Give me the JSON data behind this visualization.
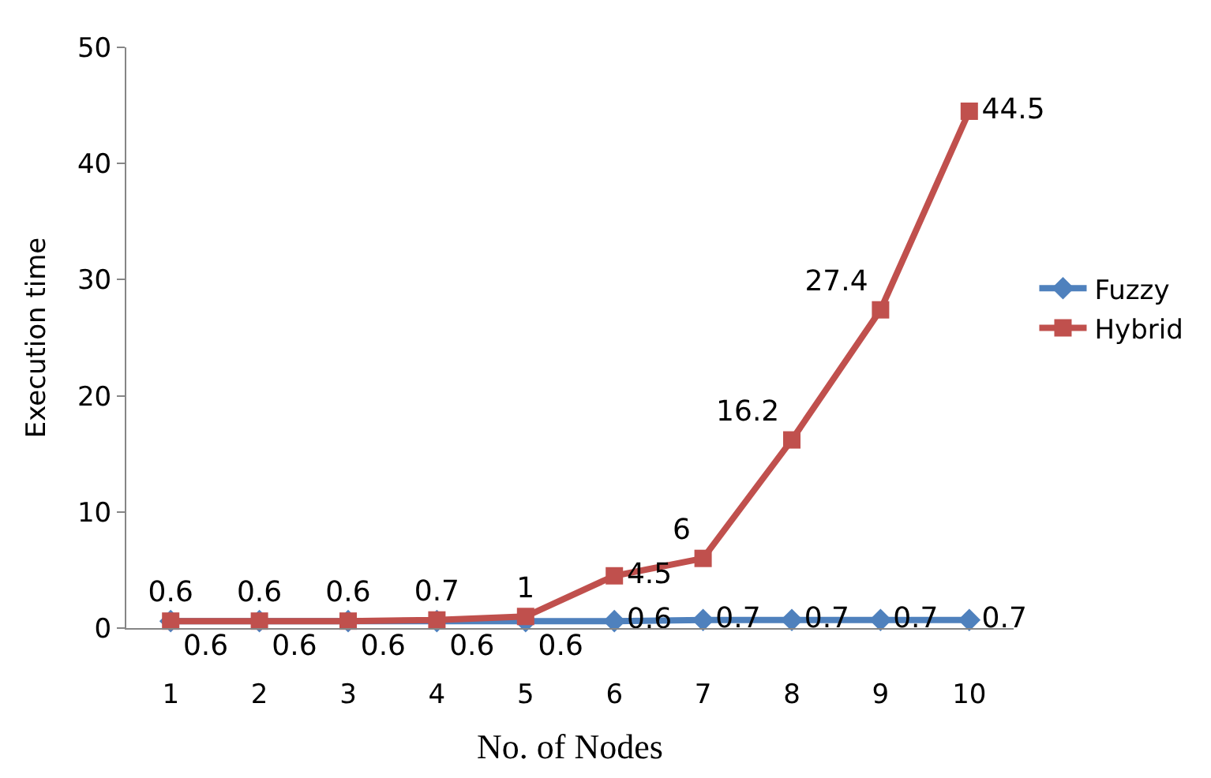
{
  "chart_data": {
    "type": "line",
    "xlabel": "No. of Nodes",
    "ylabel": "Execution time",
    "categories": [
      "1",
      "2",
      "3",
      "4",
      "5",
      "6",
      "7",
      "8",
      "9",
      "10"
    ],
    "series": [
      {
        "name": "Fuzzy",
        "color": "#4f81bd",
        "marker": "diamond",
        "values": [
          0.6,
          0.6,
          0.6,
          0.6,
          0.6,
          0.6,
          0.7,
          0.7,
          0.7,
          0.7
        ]
      },
      {
        "name": "Hybrid",
        "color": "#c0504d",
        "marker": "square",
        "values": [
          0.6,
          0.6,
          0.6,
          0.7,
          1,
          4.5,
          6,
          16.2,
          27.4,
          44.5
        ]
      }
    ],
    "ylim": [
      0,
      50
    ],
    "yticks": [
      0,
      10,
      20,
      30,
      40,
      50
    ],
    "grid": false,
    "legend": "right",
    "data_labels": true
  }
}
